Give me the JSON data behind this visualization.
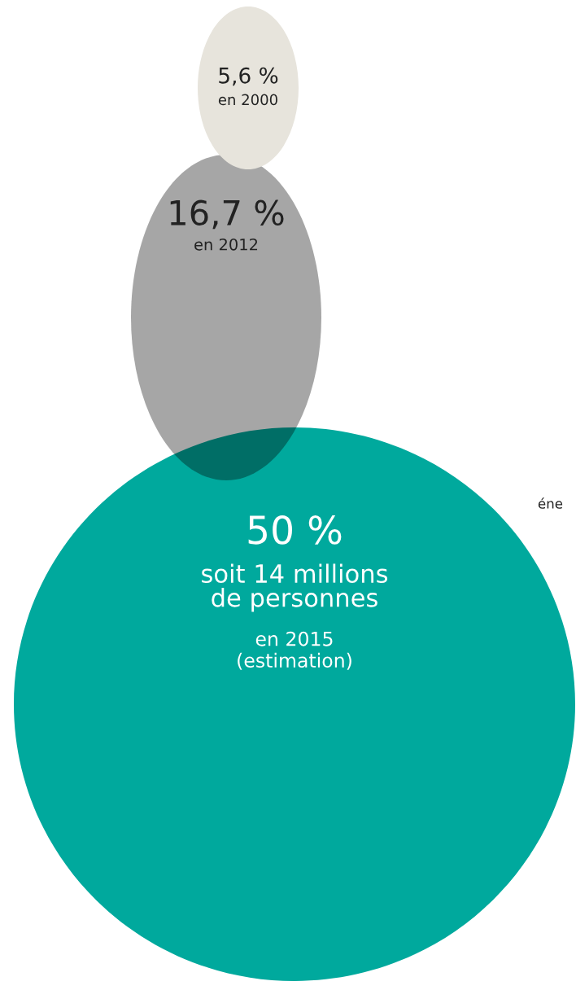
{
  "chart_data": {
    "type": "other",
    "categories": [
      "en 2000",
      "en 2012",
      "en 2015\n(estimation)"
    ],
    "values": [
      5.6,
      16.7,
      50
    ],
    "value_labels": [
      "5,6 %",
      "16,7 %",
      "50 %"
    ],
    "colors": [
      "#e7e4dc",
      "#a6a6a6",
      "#00a99d"
    ],
    "annotations": [
      "soit 14 millions\nde personnes",
      "éne"
    ]
  }
}
